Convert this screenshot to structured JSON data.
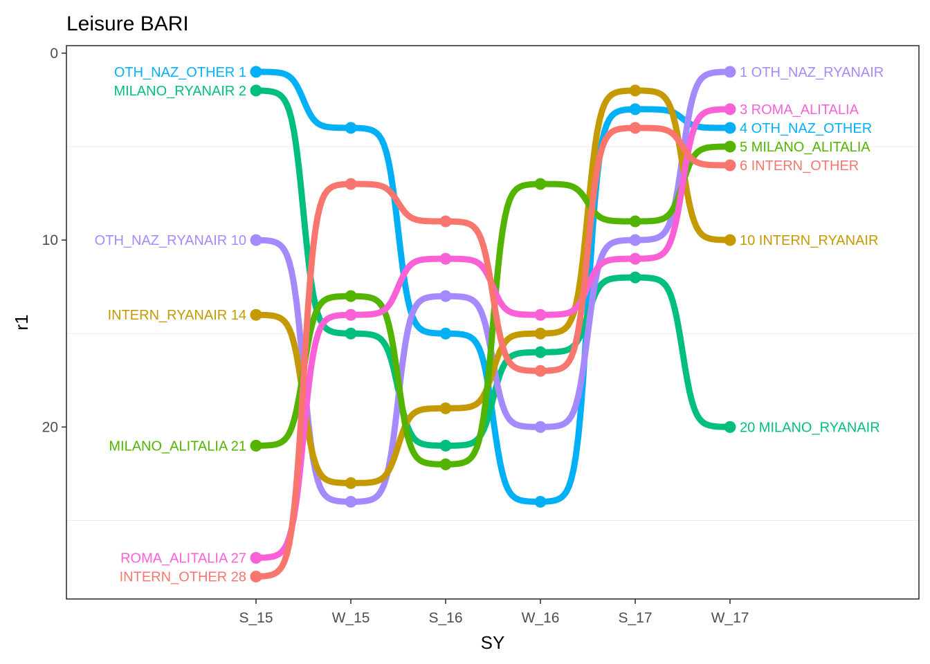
{
  "chart_data": {
    "type": "line",
    "title": "Leisure BARI",
    "xlabel": "SY",
    "ylabel": "r1",
    "x": [
      "S_15",
      "W_15",
      "S_16",
      "W_16",
      "S_17",
      "W_17"
    ],
    "ylim": [
      29.2,
      -0.4
    ],
    "y_ticks": [
      0,
      10,
      20
    ],
    "y_reversed": true,
    "grid": "horizontal-minor",
    "legend": "none",
    "series": [
      {
        "name": "OTH_NAZ_OTHER",
        "values": [
          1,
          4,
          15,
          24,
          3,
          4
        ],
        "color": "#00B0F6"
      },
      {
        "name": "MILANO_RYANAIR",
        "values": [
          2,
          15,
          21,
          16,
          12,
          20
        ],
        "color": "#00BF7D"
      },
      {
        "name": "OTH_NAZ_RYANAIR",
        "values": [
          10,
          24,
          13,
          20,
          10,
          1
        ],
        "color": "#A58AFF"
      },
      {
        "name": "INTERN_RYANAIR",
        "values": [
          14,
          23,
          19,
          15,
          2,
          10
        ],
        "color": "#C49A00"
      },
      {
        "name": "MILANO_ALITALIA",
        "values": [
          21,
          13,
          22,
          7,
          9,
          5
        ],
        "color": "#53B400"
      },
      {
        "name": "ROMA_ALITALIA",
        "values": [
          27,
          14,
          11,
          14,
          11,
          3
        ],
        "color": "#FB61D7"
      },
      {
        "name": "INTERN_OTHER",
        "values": [
          28,
          7,
          9,
          17,
          4,
          6
        ],
        "color": "#F8766D"
      }
    ]
  }
}
